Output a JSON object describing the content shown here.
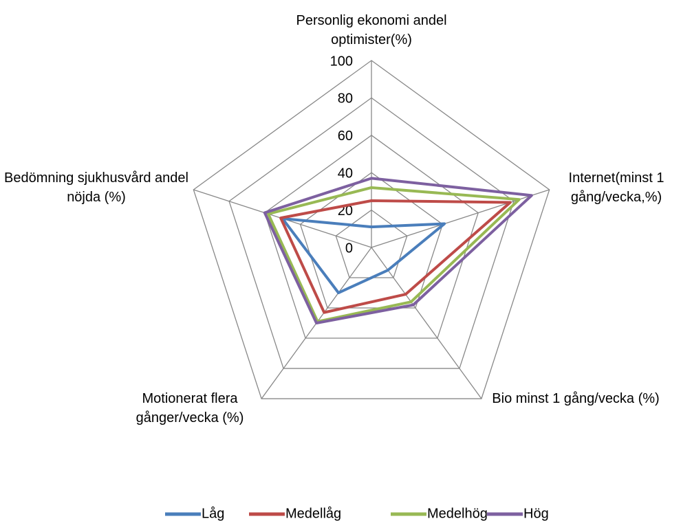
{
  "chart_data": {
    "type": "radar",
    "categories": [
      "Personlig ekonomi andel optimister(%)",
      "Internet(minst 1 gång/vecka,%)",
      "Bio minst 1 gång/vecka (%)",
      "Motionerat flera gånger/vecka (%)",
      "Bedömning sjukhusvård andel nöjda (%)"
    ],
    "series": [
      {
        "name": "Låg",
        "color": "#4a7ebb",
        "values": [
          11,
          41,
          15,
          30,
          50
        ]
      },
      {
        "name": "Medellåg",
        "color": "#be4b48",
        "values": [
          25,
          78,
          31,
          43,
          51
        ]
      },
      {
        "name": "Medelhög",
        "color": "#98b954",
        "values": [
          32,
          83,
          36,
          49,
          58
        ]
      },
      {
        "name": "Hög",
        "color": "#7d60a0",
        "values": [
          37,
          90,
          38,
          50,
          60
        ]
      }
    ],
    "ylim": [
      0,
      100
    ],
    "yticks": [
      0,
      20,
      40,
      60,
      80,
      100
    ],
    "grid": true,
    "legend": "bottom"
  }
}
